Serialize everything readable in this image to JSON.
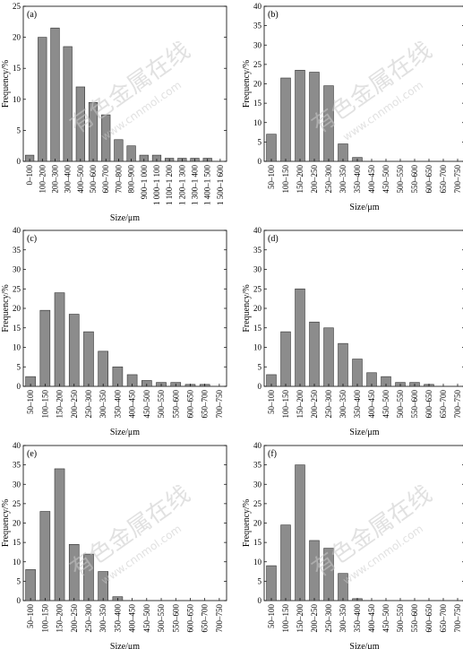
{
  "chart_data": [
    {
      "panel": "(a)",
      "type": "bar",
      "categories": [
        "0–100",
        "100–200",
        "200–300",
        "300–400",
        "400–500",
        "500–600",
        "600–700",
        "700–800",
        "800–900",
        "900–1 000",
        "1 000–1 100",
        "1 100–1 200",
        "1 200–1 300",
        "1 300–1 400",
        "1 400–1 500",
        "1 500–1 600"
      ],
      "values": [
        1,
        20,
        21.5,
        18.5,
        12,
        9.5,
        7.5,
        3.5,
        2.5,
        1,
        1,
        0.5,
        0.5,
        0.5,
        0.5,
        0
      ],
      "xlabel": "Size/μm",
      "ylabel": "Frequency/%",
      "ylim": [
        0,
        25
      ],
      "yticks": [
        0,
        5,
        10,
        15,
        20,
        25
      ]
    },
    {
      "panel": "(b)",
      "type": "bar",
      "categories": [
        "50–100",
        "100–150",
        "150–200",
        "200–250",
        "250–300",
        "300–350",
        "350–400",
        "400–450",
        "450–500",
        "500–550",
        "550–600",
        "600–650",
        "650–700",
        "700–750"
      ],
      "values": [
        7,
        21.5,
        23.5,
        23,
        19.5,
        4.5,
        1,
        0,
        0,
        0,
        0,
        0,
        0,
        0
      ],
      "xlabel": "Size/μm",
      "ylabel": "Frequency/%",
      "ylim": [
        0,
        40
      ],
      "yticks": [
        0,
        5,
        10,
        15,
        20,
        25,
        30,
        35,
        40
      ]
    },
    {
      "panel": "(c)",
      "type": "bar",
      "categories": [
        "50–100",
        "100–150",
        "150–200",
        "200–250",
        "250–300",
        "300–350",
        "350–400",
        "400–450",
        "450–500",
        "500–550",
        "550–600",
        "600–650",
        "650–700",
        "700–750"
      ],
      "values": [
        2.5,
        19.5,
        24,
        18.5,
        14,
        9,
        5,
        3,
        1.5,
        1,
        1,
        0.5,
        0.5,
        0
      ],
      "xlabel": "Size/μm",
      "ylabel": "Frequency/%",
      "ylim": [
        0,
        40
      ],
      "yticks": [
        0,
        5,
        10,
        15,
        20,
        25,
        30,
        35,
        40
      ]
    },
    {
      "panel": "(d)",
      "type": "bar",
      "categories": [
        "50–100",
        "100–150",
        "150–200",
        "200–250",
        "250–300",
        "300–350",
        "350–400",
        "400–450",
        "450–500",
        "500–550",
        "550–600",
        "600–650",
        "650–700",
        "700–750"
      ],
      "values": [
        3,
        14,
        25,
        16.5,
        15,
        11,
        7,
        3.5,
        2.5,
        1,
        1,
        0.5,
        0,
        0
      ],
      "xlabel": "Size/μm",
      "ylabel": "Frequency/%",
      "ylim": [
        0,
        40
      ],
      "yticks": [
        0,
        5,
        10,
        15,
        20,
        25,
        30,
        35,
        40
      ]
    },
    {
      "panel": "(e)",
      "type": "bar",
      "categories": [
        "50–100",
        "100–150",
        "150–200",
        "200–250",
        "250–300",
        "300–350",
        "350–400",
        "400–450",
        "450–500",
        "500–550",
        "550–600",
        "600–650",
        "650–700",
        "700–750"
      ],
      "values": [
        8,
        23,
        34,
        14.5,
        12,
        7.5,
        1,
        0,
        0,
        0,
        0,
        0,
        0,
        0
      ],
      "xlabel": "Size/μm",
      "ylabel": "Frequency/%",
      "ylim": [
        0,
        40
      ],
      "yticks": [
        0,
        5,
        10,
        15,
        20,
        25,
        30,
        35,
        40
      ]
    },
    {
      "panel": "(f)",
      "type": "bar",
      "categories": [
        "50–100",
        "100–150",
        "150–200",
        "200–250",
        "250–300",
        "300–350",
        "350–400",
        "400–450",
        "450–500",
        "500–550",
        "550–600",
        "600–650",
        "650–700",
        "700–750"
      ],
      "values": [
        9,
        19.5,
        35,
        15.5,
        13.5,
        7,
        0.5,
        0,
        0,
        0,
        0,
        0,
        0,
        0
      ],
      "xlabel": "Size/μm",
      "ylabel": "Frequency/%",
      "ylim": [
        0,
        40
      ],
      "yticks": [
        0,
        5,
        10,
        15,
        20,
        25,
        30,
        35,
        40
      ]
    }
  ],
  "watermark": {
    "text": "有色金属在线",
    "url": "www.cnnmol.com",
    "color": "#c8c8c8"
  },
  "bar_color": "#8c8c8c"
}
